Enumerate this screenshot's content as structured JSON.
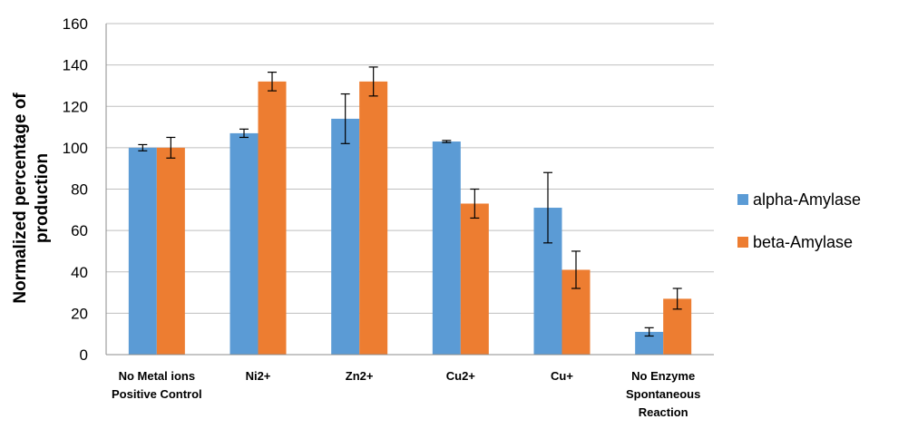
{
  "chart_data": {
    "type": "bar",
    "categories": [
      [
        "No Metal ions",
        "Positive Control"
      ],
      [
        "Ni2+"
      ],
      [
        "Zn2+"
      ],
      [
        "Cu2+"
      ],
      [
        "Cu+"
      ],
      [
        "No Enzyme",
        "Spontaneous",
        "Reaction"
      ]
    ],
    "series": [
      {
        "name": "alpha-Amylase",
        "color": "#5B9BD5",
        "values": [
          100,
          107,
          114,
          103,
          71,
          11
        ],
        "errors": [
          1.5,
          2,
          12,
          0.5,
          17,
          2
        ]
      },
      {
        "name": "beta-Amylase",
        "color": "#ED7D31",
        "values": [
          100,
          132,
          132,
          73,
          41,
          27
        ],
        "errors": [
          5,
          4.5,
          7,
          7,
          9,
          5
        ]
      }
    ],
    "ylabel": "Normalized percentage of production",
    "ylabel_lines": [
      "Normalized percentage of",
      "production"
    ],
    "ylim": [
      0,
      160
    ],
    "yticks": [
      0,
      20,
      40,
      60,
      80,
      100,
      120,
      140,
      160
    ],
    "grid": true,
    "legend_position": "right"
  }
}
